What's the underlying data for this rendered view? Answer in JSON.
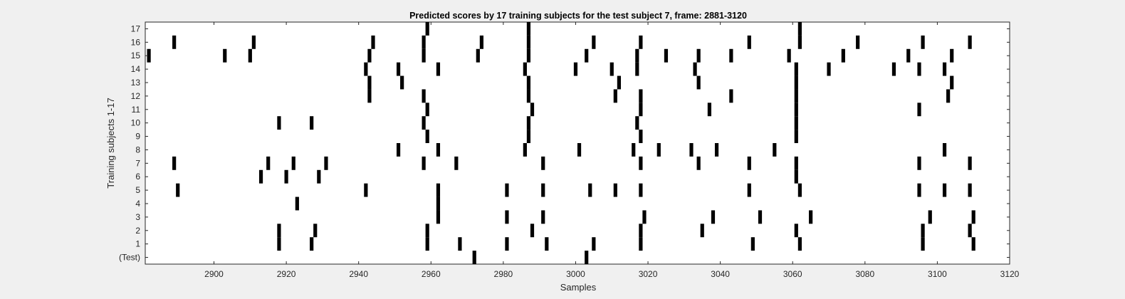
{
  "chart_data": {
    "type": "heatmap",
    "title": "Predicted scores by 17 training subjects for the test subject 7, frame: 2881-3120",
    "xlabel": "Samples",
    "ylabel": "Training subjects 1-17",
    "xlim": [
      2881,
      3120
    ],
    "x_ticks": [
      2900,
      2920,
      2940,
      2960,
      2980,
      3000,
      3020,
      3040,
      3060,
      3080,
      3100,
      3120
    ],
    "y_tick_labels": [
      "(Test)",
      "1",
      "2",
      "3",
      "4",
      "5",
      "6",
      "7",
      "8",
      "9",
      "10",
      "11",
      "12",
      "13",
      "14",
      "15",
      "16",
      "17"
    ],
    "grid": false,
    "colors": {
      "mark": "#000000",
      "background": "#ffffff",
      "figure": "#f0f0f0"
    },
    "rows": [
      {
        "name": "(Test)",
        "x": [
          2972,
          3003
        ]
      },
      {
        "name": "1",
        "x": [
          2918,
          2927,
          2959,
          2968,
          2981,
          2992,
          3005,
          3018,
          3049,
          3062,
          3096,
          3110
        ]
      },
      {
        "name": "2",
        "x": [
          2918,
          2928,
          2959,
          2988,
          3018,
          3035,
          3061,
          3096,
          3109
        ]
      },
      {
        "name": "3",
        "x": [
          2962,
          2981,
          2991,
          3019,
          3038,
          3051,
          3065,
          3098,
          3110
        ]
      },
      {
        "name": "4",
        "x": [
          2923,
          2962
        ]
      },
      {
        "name": "5",
        "x": [
          2890,
          2942,
          2962,
          2981,
          2991,
          3004,
          3011,
          3018,
          3048,
          3062,
          3095,
          3102,
          3109
        ]
      },
      {
        "name": "6",
        "x": [
          2913,
          2920,
          2929,
          3061
        ]
      },
      {
        "name": "7",
        "x": [
          2889,
          2915,
          2922,
          2931,
          2958,
          2967,
          2991,
          3018,
          3034,
          3048,
          3061,
          3095,
          3109
        ]
      },
      {
        "name": "8",
        "x": [
          2951,
          2962,
          2986,
          3001,
          3016,
          3023,
          3032,
          3039,
          3055,
          3102
        ]
      },
      {
        "name": "9",
        "x": [
          2959,
          2987,
          3018,
          3061
        ]
      },
      {
        "name": "10",
        "x": [
          2918,
          2927,
          2958,
          2987,
          3017,
          3061
        ]
      },
      {
        "name": "11",
        "x": [
          2959,
          2988,
          3018,
          3037,
          3061,
          3095
        ]
      },
      {
        "name": "12",
        "x": [
          2943,
          2958,
          2987,
          3011,
          3018,
          3043,
          3061,
          3103
        ]
      },
      {
        "name": "13",
        "x": [
          2943,
          2952,
          2987,
          3012,
          3034,
          3061,
          3104
        ]
      },
      {
        "name": "14",
        "x": [
          2942,
          2951,
          2962,
          2986,
          3000,
          3010,
          3017,
          3033,
          3061,
          3070,
          3088,
          3095,
          3102
        ]
      },
      {
        "name": "15",
        "x": [
          2882,
          2903,
          2910,
          2943,
          2958,
          2973,
          2987,
          3003,
          3017,
          3025,
          3034,
          3043,
          3059,
          3074,
          3092,
          3104
        ]
      },
      {
        "name": "16",
        "x": [
          2889,
          2911,
          2944,
          2958,
          2974,
          2987,
          3005,
          3018,
          3048,
          3062,
          3078,
          3096,
          3109
        ]
      },
      {
        "name": "17",
        "x": [
          2959,
          2987,
          3062
        ]
      }
    ]
  }
}
